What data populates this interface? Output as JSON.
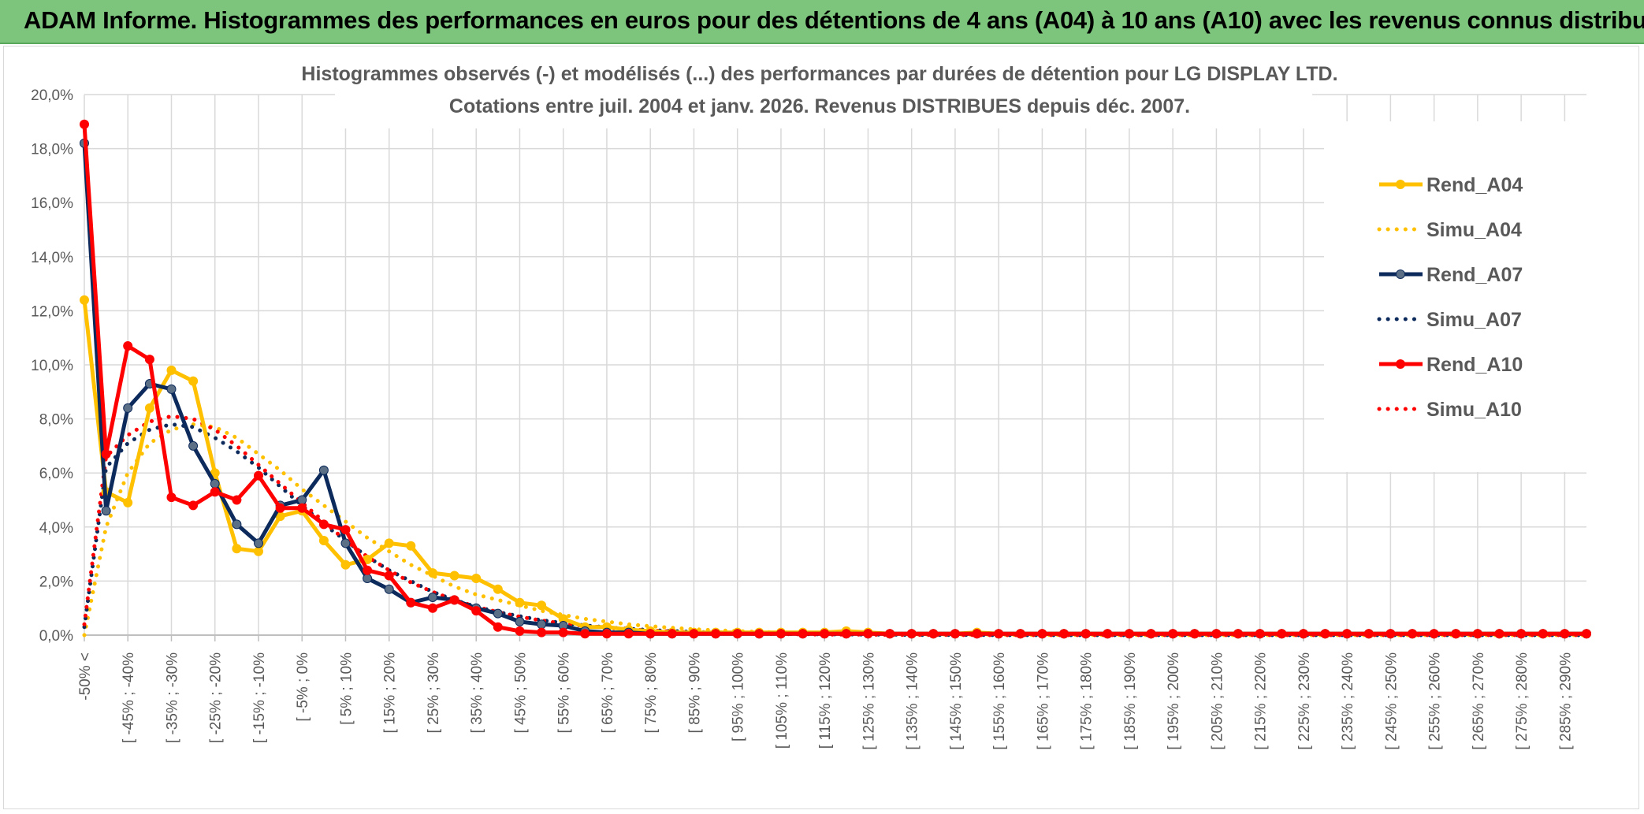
{
  "banner": {
    "title": "ADAM Informe. Histogrammes des performances en euros pour des détentions de 4 ans (A04) à 10 ans (A10) avec les revenus connus distribués"
  },
  "colors": {
    "banner_bg": "#7dc47d",
    "a04": "#ffc000",
    "a07": "#0d2a5c",
    "a07_marker": "#5b6f86",
    "a10": "#ff0000",
    "grid": "#d9d9d9"
  },
  "chart_data": {
    "type": "line",
    "title": "Histogrammes observés (-) et modélisés (...) des performances par durées de détention pour LG DISPLAY LTD.",
    "subtitle": "Cotations entre juil. 2004 et janv. 2026. Revenus DISTRIBUES depuis déc. 2007.",
    "ylim": [
      0,
      20
    ],
    "y_ticks": [
      "0,0%",
      "2,0%",
      "4,0%",
      "6,0%",
      "8,0%",
      "10,0%",
      "12,0%",
      "14,0%",
      "16,0%",
      "18,0%",
      "20,0%"
    ],
    "x_tick_labels": [
      "-50% <",
      "[ -45% ; -40%",
      "[ -35% ; -30%",
      "[ -25% ; -20%",
      "[ -15% ; -10%",
      "[ -5% ; 0%",
      "[ 5% ; 10%",
      "[ 15% ; 20%",
      "[ 25% ; 30%",
      "[ 35% ; 40%",
      "[ 45% ; 50%",
      "[ 55% ; 60%",
      "[ 65% ; 70%",
      "[ 75% ; 80%",
      "[ 85% ; 90%",
      "[ 95% ; 100%",
      "[ 105% ; 110%",
      "[ 115% ; 120%",
      "[ 125% ; 130%",
      "[ 135% ; 140%",
      "[ 145% ; 150%",
      "[ 155% ; 160%",
      "[ 165% ; 170%",
      "[ 175% ; 180%",
      "[ 185% ; 190%",
      "[ 195% ; 200%",
      "[ 205% ; 210%",
      "[ 215% ; 220%",
      "[ 225% ; 230%",
      "[ 235% ; 240%",
      "[ 245% ; 250%",
      "[ 255% ; 260%",
      "[ 265% ; 270%",
      "[ 275% ; 280%",
      "[ 285% ; 290%"
    ],
    "legend_position": "right",
    "series": [
      {
        "name": "Rend_A04",
        "style": "solid",
        "values": [
          12.4,
          5.3,
          4.9,
          8.4,
          9.8,
          9.4,
          6.0,
          3.2,
          3.1,
          4.4,
          4.6,
          3.5,
          2.6,
          2.8,
          3.4,
          3.3,
          2.3,
          2.2,
          2.1,
          1.7,
          1.2,
          1.1,
          0.6,
          0.3,
          0.3,
          0.2,
          0.15,
          0.1,
          0.1,
          0.1,
          0.1,
          0.1,
          0.1,
          0.1,
          0.1,
          0.15,
          0.1,
          0.05,
          0.05,
          0.05,
          0.05,
          0.1,
          0.05,
          0.05,
          0.05,
          0.05,
          0.05,
          0.05,
          0.05,
          0.05,
          0.05,
          0.05,
          0.05,
          0.05,
          0.05,
          0.05,
          0.05,
          0.05,
          0.05,
          0.05,
          0.05,
          0.05,
          0.05,
          0.05,
          0.05,
          0.05,
          0.05,
          0.05,
          0.05,
          0.05
        ]
      },
      {
        "name": "Simu_A04",
        "style": "dotted",
        "values": [
          0.0,
          4.0,
          6.0,
          7.1,
          7.6,
          7.8,
          7.7,
          7.3,
          6.7,
          6.1,
          5.4,
          4.8,
          4.2,
          3.6,
          3.1,
          2.6,
          2.2,
          1.8,
          1.5,
          1.3,
          1.1,
          0.9,
          0.75,
          0.6,
          0.5,
          0.4,
          0.33,
          0.27,
          0.22,
          0.18,
          0.15,
          0.12,
          0.1,
          0.08,
          0.07,
          0.06,
          0.05,
          0.04,
          0.03,
          0.03,
          0.02,
          0.02,
          0.02,
          0.01,
          0.01,
          0.01,
          0.01,
          0.01,
          0.01,
          0.0,
          0.0,
          0.0,
          0.0,
          0.0,
          0.0,
          0.0,
          0.0,
          0.0,
          0.0,
          0.0,
          0.0,
          0.0,
          0.0,
          0.0,
          0.0,
          0.0,
          0.0,
          0.0,
          0.0,
          0.0
        ]
      },
      {
        "name": "Rend_A07",
        "style": "solid",
        "values": [
          18.2,
          4.6,
          8.4,
          9.3,
          9.1,
          7.0,
          5.6,
          4.1,
          3.4,
          4.8,
          5.0,
          6.1,
          3.4,
          2.1,
          1.7,
          1.2,
          1.4,
          1.3,
          1.0,
          0.8,
          0.5,
          0.4,
          0.35,
          0.15,
          0.1,
          0.1,
          0.05,
          0.05,
          0.05,
          0.05,
          0.05,
          0.05,
          0.05,
          0.05,
          0.05,
          0.05,
          0.05,
          0.05,
          0.05,
          0.05,
          0.05,
          0.05,
          0.05,
          0.05,
          0.05,
          0.05,
          0.05,
          0.05,
          0.05,
          0.05,
          0.05,
          0.05,
          0.05,
          0.05,
          0.05,
          0.05,
          0.05,
          0.05,
          0.05,
          0.05,
          0.05,
          0.05,
          0.05,
          0.05,
          0.05,
          0.05,
          0.05,
          0.05,
          0.05,
          0.05
        ]
      },
      {
        "name": "Simu_A07",
        "style": "dotted",
        "values": [
          0.3,
          6.2,
          7.1,
          7.6,
          7.8,
          7.7,
          7.3,
          6.8,
          6.2,
          5.5,
          4.8,
          4.1,
          3.5,
          2.9,
          2.4,
          2.0,
          1.6,
          1.3,
          1.05,
          0.85,
          0.7,
          0.55,
          0.45,
          0.36,
          0.29,
          0.23,
          0.19,
          0.15,
          0.12,
          0.1,
          0.08,
          0.06,
          0.05,
          0.04,
          0.03,
          0.03,
          0.02,
          0.02,
          0.01,
          0.01,
          0.01,
          0.01,
          0.0,
          0.0,
          0.0,
          0.0,
          0.0,
          0.0,
          0.0,
          0.0,
          0.0,
          0.0,
          0.0,
          0.0,
          0.0,
          0.0,
          0.0,
          0.0,
          0.0,
          0.0,
          0.0,
          0.0,
          0.0,
          0.0,
          0.0,
          0.0,
          0.0,
          0.0,
          0.0,
          0.0
        ]
      },
      {
        "name": "Rend_A10",
        "style": "solid",
        "values": [
          18.9,
          6.7,
          10.7,
          10.2,
          5.1,
          4.8,
          5.3,
          5.0,
          5.9,
          4.7,
          4.7,
          4.1,
          3.9,
          2.4,
          2.2,
          1.2,
          1.0,
          1.3,
          0.9,
          0.3,
          0.15,
          0.1,
          0.1,
          0.05,
          0.05,
          0.05,
          0.05,
          0.05,
          0.05,
          0.05,
          0.05,
          0.05,
          0.05,
          0.05,
          0.05,
          0.05,
          0.05,
          0.05,
          0.05,
          0.05,
          0.05,
          0.05,
          0.05,
          0.05,
          0.05,
          0.05,
          0.05,
          0.05,
          0.05,
          0.05,
          0.05,
          0.05,
          0.05,
          0.05,
          0.05,
          0.05,
          0.05,
          0.05,
          0.05,
          0.05,
          0.05,
          0.05,
          0.05,
          0.05,
          0.05,
          0.05,
          0.05,
          0.05,
          0.05,
          0.05
        ]
      },
      {
        "name": "Simu_A10",
        "style": "dotted",
        "values": [
          0.4,
          6.6,
          7.4,
          7.9,
          8.1,
          8.0,
          7.6,
          7.0,
          6.3,
          5.6,
          4.9,
          4.2,
          3.5,
          2.9,
          2.4,
          1.95,
          1.6,
          1.3,
          1.05,
          0.85,
          0.68,
          0.54,
          0.43,
          0.34,
          0.27,
          0.21,
          0.17,
          0.13,
          0.1,
          0.08,
          0.06,
          0.05,
          0.04,
          0.03,
          0.02,
          0.02,
          0.02,
          0.01,
          0.01,
          0.01,
          0.01,
          0.0,
          0.0,
          0.0,
          0.0,
          0.0,
          0.0,
          0.0,
          0.0,
          0.0,
          0.0,
          0.0,
          0.0,
          0.0,
          0.0,
          0.0,
          0.0,
          0.0,
          0.0,
          0.0,
          0.0,
          0.0,
          0.0,
          0.0,
          0.0,
          0.0,
          0.0,
          0.0,
          0.0,
          0.0
        ]
      }
    ]
  }
}
